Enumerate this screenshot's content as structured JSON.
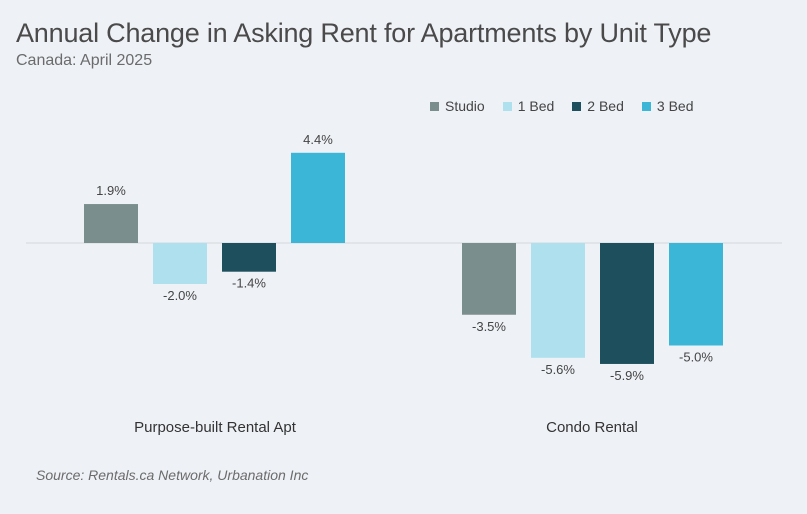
{
  "title": "Annual Change in Asking Rent for Apartments by Unit Type",
  "subtitle": "Canada: April 2025",
  "source": "Source: Rentals.ca Network, Urbanation Inc",
  "chart_data": {
    "type": "bar",
    "categories": [
      "Purpose-built Rental Apt",
      "Condo Rental"
    ],
    "series": [
      {
        "name": "Studio",
        "values": [
          1.9,
          -3.5
        ],
        "labels": [
          "1.9%",
          "-3.5%"
        ],
        "color": "#7b8e8e"
      },
      {
        "name": "1 Bed",
        "values": [
          -2.0,
          -5.6
        ],
        "labels": [
          "-2.0%",
          "-5.6%"
        ],
        "color": "#aee0ee"
      },
      {
        "name": "2 Bed",
        "values": [
          -1.4,
          -5.9
        ],
        "labels": [
          "-1.4%",
          "-5.9%"
        ],
        "color": "#1d4f5c"
      },
      {
        "name": "3 Bed",
        "values": [
          4.4,
          -5.0
        ],
        "labels": [
          "4.4%",
          "-5.0%"
        ],
        "color": "#3bb6d6"
      }
    ],
    "ylim": [
      -6.5,
      5.0
    ],
    "grid": false,
    "legend": "top-right",
    "unit": "%"
  }
}
